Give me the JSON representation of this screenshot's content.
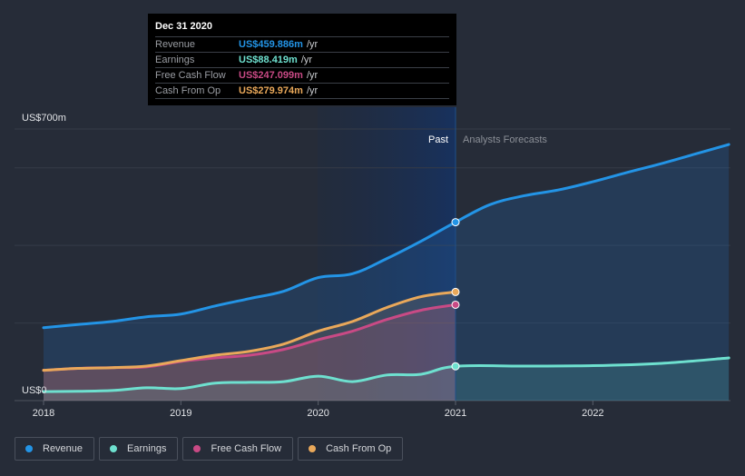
{
  "chart_data": {
    "type": "area",
    "title": "",
    "xlabel": "",
    "ylabel": "",
    "y_unit": "US$ millions",
    "ylim": [
      0,
      700
    ],
    "xlim": [
      2017.98,
      2022.99
    ],
    "y_tick_labels": [
      "US$0",
      "US$700m"
    ],
    "y_gridlines": [
      0,
      200,
      400,
      600,
      700
    ],
    "x_ticks": [
      2018,
      2019,
      2020,
      2021,
      2022
    ],
    "x_tick_labels": [
      "2018",
      "2019",
      "2020",
      "2021",
      "2022"
    ],
    "past_label": "Past",
    "forecast_label": "Analysts Forecasts",
    "divider_x": 2021.0,
    "legend_position": "bottom-left",
    "series": [
      {
        "name": "Revenue",
        "color": "#2394e6",
        "x": [
          2018.0,
          2018.25,
          2018.5,
          2018.75,
          2019.0,
          2019.25,
          2019.5,
          2019.75,
          2020.0,
          2020.25,
          2020.5,
          2020.75,
          2021.0,
          2021.25,
          2021.5,
          2021.75,
          2022.0,
          2022.25,
          2022.5,
          2022.75,
          2022.99
        ],
        "values": [
          188,
          196,
          204,
          216,
          223,
          244,
          263,
          282,
          317,
          327,
          366,
          411,
          459.886,
          505,
          528,
          543,
          564,
          588,
          611,
          636,
          660
        ]
      },
      {
        "name": "Earnings",
        "color": "#6ee0cf",
        "x": [
          2018.0,
          2018.25,
          2018.5,
          2018.75,
          2019.0,
          2019.25,
          2019.5,
          2019.75,
          2020.0,
          2020.25,
          2020.5,
          2020.75,
          2021.0,
          2021.5,
          2022.0,
          2022.5,
          2022.99
        ],
        "values": [
          23,
          24,
          26,
          33,
          31,
          45,
          47,
          49,
          63,
          49,
          66,
          68,
          88.419,
          89,
          90,
          96,
          110
        ]
      },
      {
        "name": "Free Cash Flow",
        "color": "#c94a85",
        "x": [
          2018.0,
          2018.25,
          2018.5,
          2018.75,
          2019.0,
          2019.25,
          2019.5,
          2019.75,
          2020.0,
          2020.25,
          2020.5,
          2020.75,
          2021.0
        ],
        "values": [
          78,
          83,
          85,
          87,
          101,
          110,
          117,
          132,
          157,
          179,
          209,
          233,
          247.099
        ]
      },
      {
        "name": "Cash From Op",
        "color": "#e9a85a",
        "x": [
          2018.0,
          2018.25,
          2018.5,
          2018.75,
          2019.0,
          2019.25,
          2019.5,
          2019.75,
          2020.0,
          2020.25,
          2020.5,
          2020.75,
          2021.0
        ],
        "values": [
          78,
          83,
          85,
          89,
          103,
          117,
          127,
          146,
          179,
          204,
          240,
          268,
          279.974
        ]
      }
    ]
  },
  "tooltip": {
    "date": "Dec 31 2020",
    "unit": "/yr",
    "rows": [
      {
        "label": "Revenue",
        "value": "US$459.886m",
        "color": "#2394e6"
      },
      {
        "label": "Earnings",
        "value": "US$88.419m",
        "color": "#6ee0cf"
      },
      {
        "label": "Free Cash Flow",
        "value": "US$247.099m",
        "color": "#c94a85"
      },
      {
        "label": "Cash From Op",
        "value": "US$279.974m",
        "color": "#e9a85a"
      }
    ]
  },
  "legend": [
    {
      "label": "Revenue",
      "color": "#2394e6"
    },
    {
      "label": "Earnings",
      "color": "#6ee0cf"
    },
    {
      "label": "Free Cash Flow",
      "color": "#c94a85"
    },
    {
      "label": "Cash From Op",
      "color": "#e9a85a"
    }
  ]
}
